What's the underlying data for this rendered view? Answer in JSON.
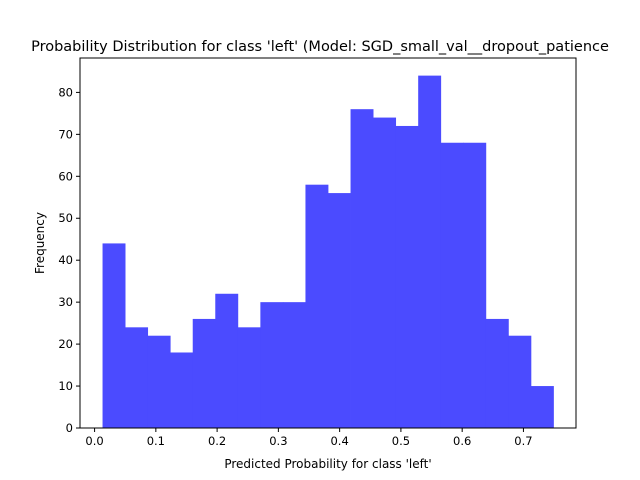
{
  "chart_data": {
    "type": "bar",
    "title": "Probability Distribution for class 'left' (Model: SGD_small_val__dropout_patience",
    "xlabel": "Predicted Probability for class 'left'",
    "ylabel": "Frequency",
    "bin_edges": [
      0.013,
      0.0498,
      0.0866,
      0.1234,
      0.1602,
      0.197,
      0.2338,
      0.2706,
      0.3074,
      0.3442,
      0.381,
      0.4178,
      0.4546,
      0.4914,
      0.5282,
      0.565,
      0.6018,
      0.6386,
      0.6754,
      0.7122,
      0.749
    ],
    "values": [
      44,
      24,
      22,
      18,
      26,
      32,
      24,
      30,
      30,
      58,
      56,
      76,
      74,
      72,
      84,
      68,
      68,
      26,
      22,
      10
    ],
    "xlim": [
      -0.0238,
      0.7858
    ],
    "ylim": [
      0,
      88.2
    ],
    "xticks": [
      0.0,
      0.1,
      0.2,
      0.3,
      0.4,
      0.5,
      0.6,
      0.7
    ],
    "xtick_labels": [
      "0.0",
      "0.1",
      "0.2",
      "0.3",
      "0.4",
      "0.5",
      "0.6",
      "0.7"
    ],
    "yticks": [
      0,
      10,
      20,
      30,
      40,
      50,
      60,
      70,
      80
    ],
    "ytick_labels": [
      "0",
      "10",
      "20",
      "30",
      "40",
      "50",
      "60",
      "70",
      "80"
    ],
    "bar_color": "#4b4bff",
    "grid": false
  }
}
